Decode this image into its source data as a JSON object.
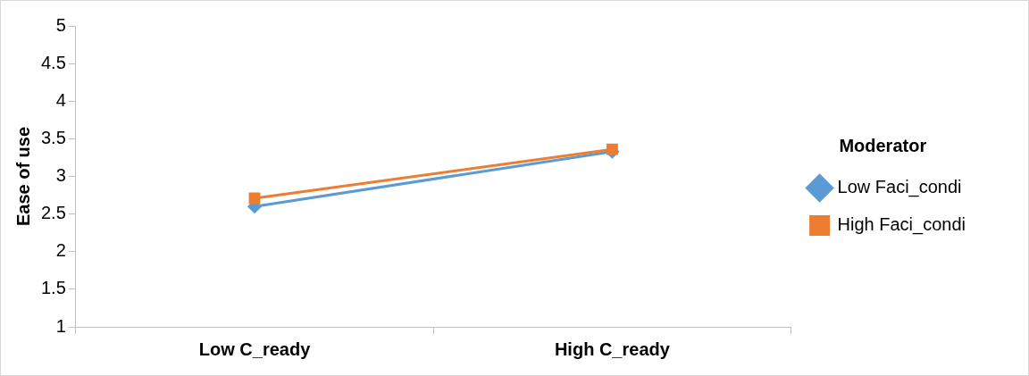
{
  "chart_data": {
    "type": "line",
    "ylabel": "Ease of use",
    "legend_title": "Moderator",
    "categories": [
      "Low C_ready",
      "High C_ready"
    ],
    "series": [
      {
        "name": "Low Faci_condi",
        "color": "#5b9bd5",
        "values": [
          2.6,
          3.33
        ],
        "marker": "diamond"
      },
      {
        "name": "High Faci_condi",
        "color": "#ed7d31",
        "values": [
          2.71,
          3.36
        ],
        "marker": "square"
      }
    ],
    "ylim": [
      1,
      5
    ],
    "yticks": [
      1,
      1.5,
      2,
      2.5,
      3,
      3.5,
      4,
      4.5,
      5
    ],
    "grid": false,
    "legend": "right",
    "line_style": "solid"
  }
}
